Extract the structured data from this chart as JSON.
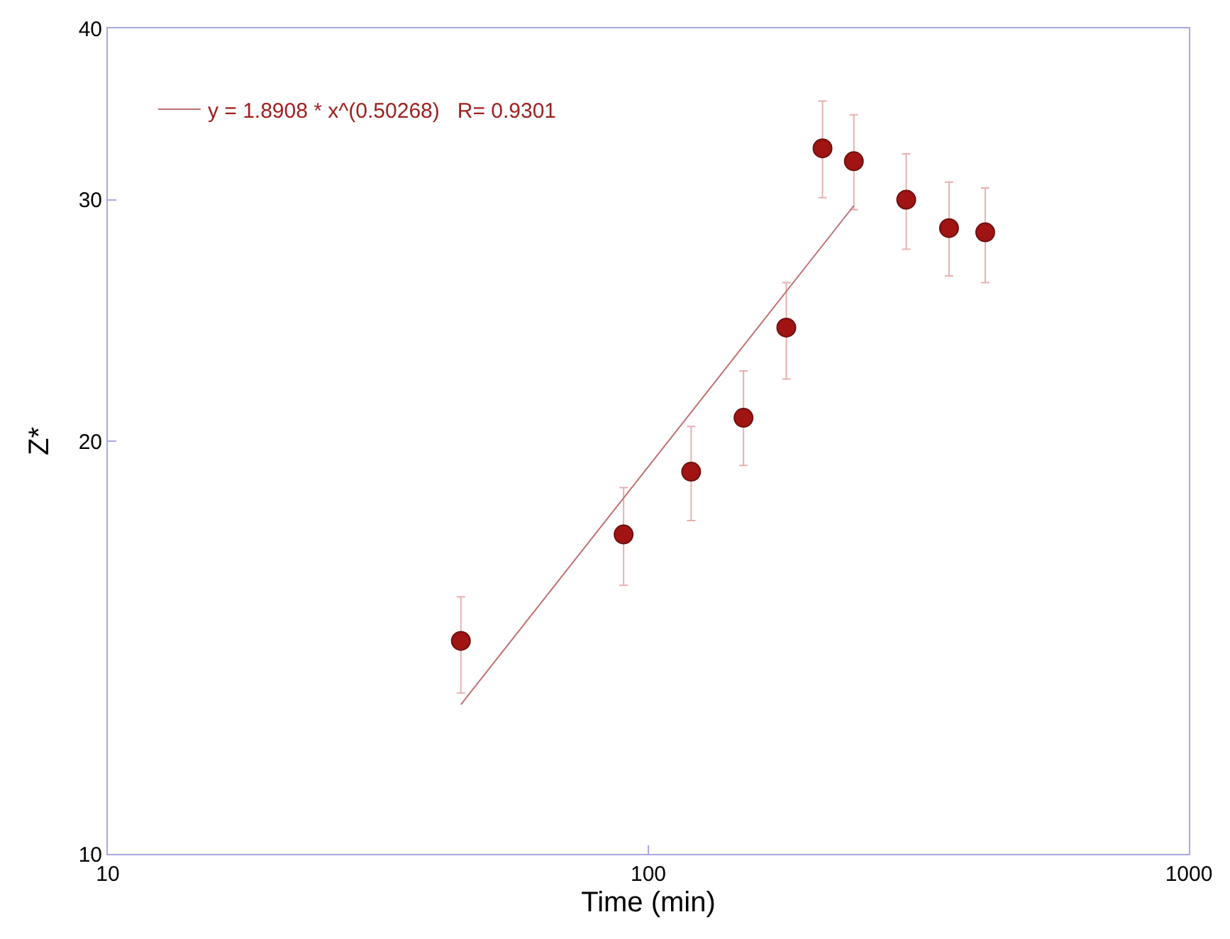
{
  "chart_data": {
    "type": "scatter",
    "xlabel": "Time (min)",
    "ylabel": "Z*",
    "log": "xy",
    "xlim": [
      10,
      1000
    ],
    "xticks": [
      10,
      100,
      1000
    ],
    "ylim": [
      10,
      40
    ],
    "yticks": [
      10,
      20,
      30,
      40
    ],
    "legend": "top left",
    "marker": "circle",
    "series": [
      {
        "color": "#a01414",
        "x": [
          45,
          90,
          120,
          150,
          180,
          210,
          240,
          300,
          360,
          420
        ],
        "values": [
          14.3,
          17.1,
          19.0,
          20.8,
          24.2,
          32.7,
          32.0,
          30.0,
          28.6,
          28.4
        ],
        "errors": [
          [
            13.1,
            15.4
          ],
          [
            15.7,
            18.5
          ],
          [
            17.5,
            20.5
          ],
          [
            19.2,
            22.5
          ],
          [
            22.2,
            26.1
          ],
          [
            30.1,
            35.4
          ],
          [
            29.5,
            34.6
          ],
          [
            27.6,
            32.4
          ],
          [
            26.4,
            30.9
          ],
          [
            26.1,
            30.6
          ]
        ]
      },
      {
        "type": "line",
        "marker": "none",
        "name": "y = 1.8908 * x^(0.50268)   R= 0.9301",
        "color": "#c07070",
        "x": [
          45,
          240
        ],
        "values": [
          12.85,
          29.7
        ]
      }
    ]
  }
}
